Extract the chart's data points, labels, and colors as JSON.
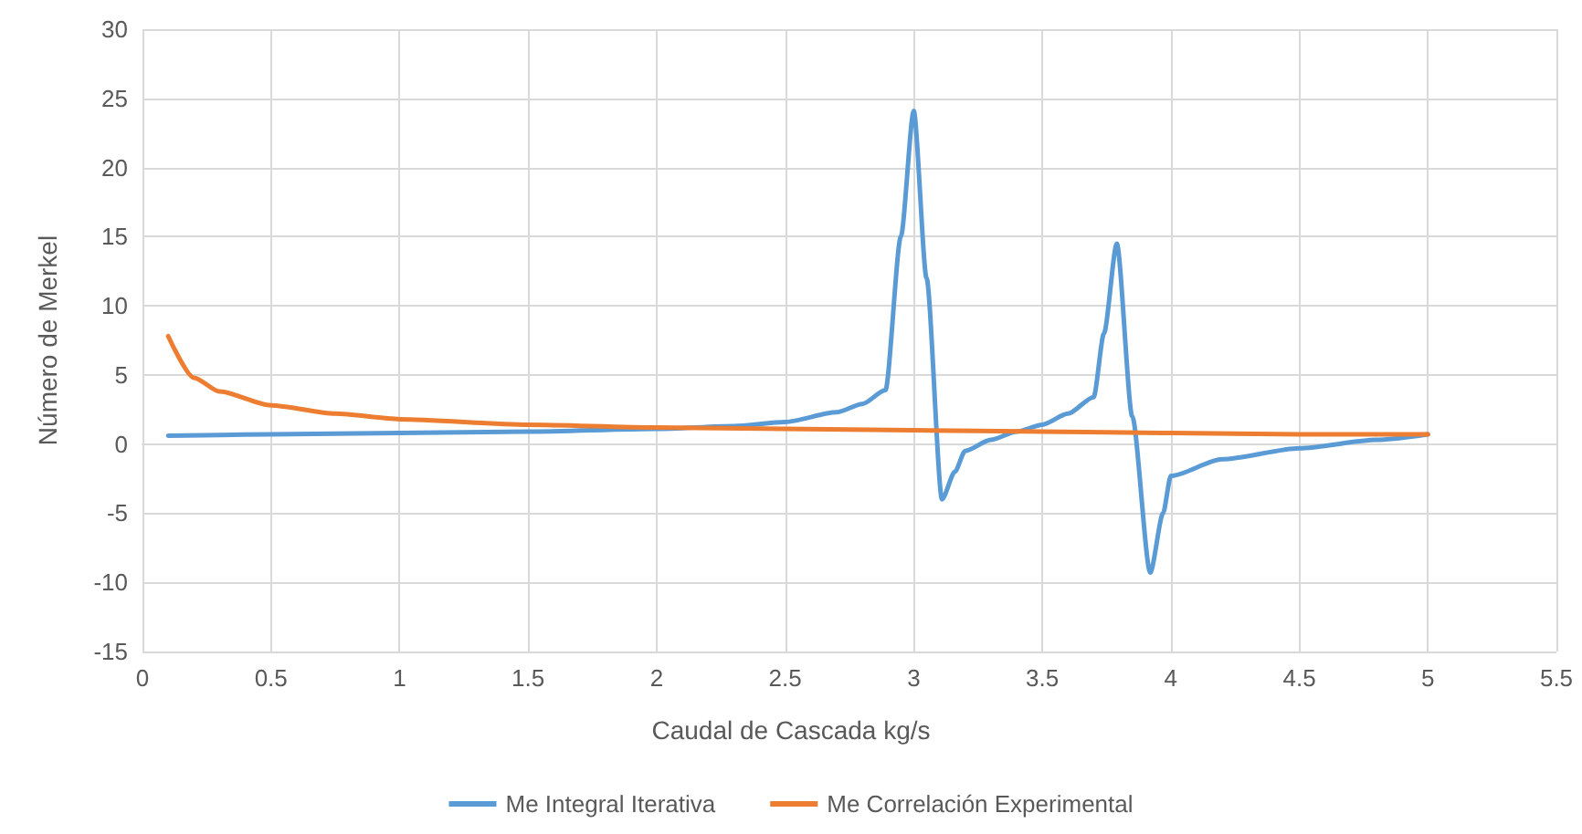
{
  "chart_data": {
    "type": "line",
    "xlabel": "Caudal de Cascada kg/s",
    "ylabel": "Número de Merkel",
    "xlim": [
      0,
      5.5
    ],
    "xticks": [
      0,
      0.5,
      1,
      1.5,
      2,
      2.5,
      3,
      3.5,
      4,
      4.5,
      5,
      5.5
    ],
    "ylim": [
      -15,
      30
    ],
    "yticks": [
      -15,
      -10,
      -5,
      0,
      5,
      10,
      15,
      20,
      25,
      30
    ],
    "grid": true,
    "legend": "bottom",
    "marker": "none",
    "line_style": "solid",
    "series": [
      {
        "name": "Me Integral Iterativa",
        "color": "#5b9bd5",
        "x": [
          0.1,
          0.5,
          1,
          1.5,
          2,
          2.3,
          2.5,
          2.7,
          2.8,
          2.89,
          2.95,
          3,
          3.05,
          3.11,
          3.16,
          3.2,
          3.3,
          3.4,
          3.5,
          3.6,
          3.7,
          3.74,
          3.79,
          3.85,
          3.92,
          3.97,
          4,
          4.2,
          4.5,
          4.8,
          5
        ],
        "values": [
          0.6,
          0.7,
          0.8,
          0.9,
          1.1,
          1.3,
          1.6,
          2.3,
          2.9,
          3.9,
          15,
          24.1,
          12,
          -4.0,
          -2.0,
          -0.5,
          0.3,
          0.9,
          1.4,
          2.2,
          3.4,
          8,
          14.5,
          2,
          -9.3,
          -5,
          -2.3,
          -1.1,
          -0.3,
          0.3,
          0.7
        ]
      },
      {
        "name": "Me Correlación Experimental",
        "color": "#ed7d31",
        "x": [
          0.1,
          0.2,
          0.3,
          0.5,
          0.75,
          1,
          1.5,
          2,
          2.5,
          3,
          3.5,
          4,
          4.5,
          5
        ],
        "values": [
          7.8,
          4.8,
          3.8,
          2.8,
          2.2,
          1.8,
          1.4,
          1.2,
          1.1,
          1.0,
          0.9,
          0.8,
          0.7,
          0.7
        ]
      }
    ]
  }
}
